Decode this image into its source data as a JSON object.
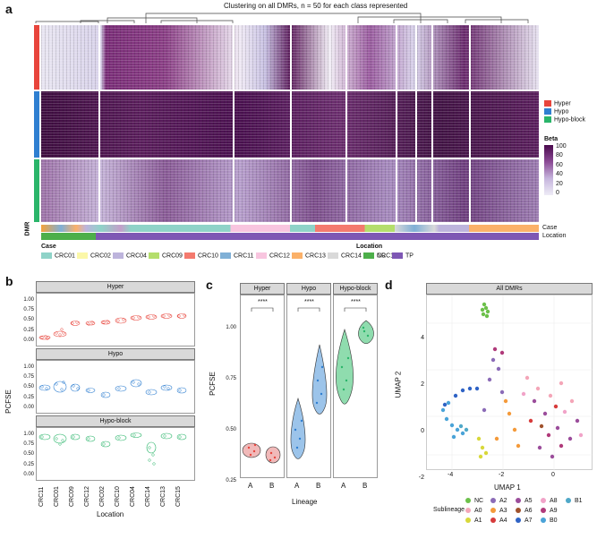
{
  "panel_a": {
    "label": "a",
    "title": "Clustering on all DMRs, n = 50 for each class represented",
    "row_groups": [
      {
        "name": "Hyper",
        "color": "#e8453c"
      },
      {
        "name": "Hypo",
        "color": "#2f7fd1"
      },
      {
        "name": "Hypo-block",
        "color": "#2ab56a"
      }
    ],
    "dmr_axis_label": "DMR",
    "beta_legend": {
      "title": "Beta",
      "ticks": [
        "100",
        "80",
        "60",
        "40",
        "20",
        "0"
      ]
    },
    "annotation_tracks": [
      "Case",
      "Location"
    ],
    "case_legend_title": "Case",
    "cases": [
      {
        "name": "CRC01",
        "color": "#8fd3c8"
      },
      {
        "name": "CRC02",
        "color": "#fbf7a8"
      },
      {
        "name": "CRC04",
        "color": "#bdb4dc"
      },
      {
        "name": "CRC09",
        "color": "#b4de6c"
      },
      {
        "name": "CRC10",
        "color": "#f47a6e"
      },
      {
        "name": "CRC11",
        "color": "#80b0d6"
      },
      {
        "name": "CRC12",
        "color": "#f8c5df"
      },
      {
        "name": "CRC13",
        "color": "#fbb169"
      },
      {
        "name": "CRC14",
        "color": "#d9d9d9"
      },
      {
        "name": "CRC15",
        "color": "#c49fca"
      }
    ],
    "location_legend_title": "Location",
    "locations": [
      {
        "name": "NC",
        "color": "#4daf4a"
      },
      {
        "name": "TP",
        "color": "#7e57b4"
      }
    ]
  },
  "panel_b": {
    "label": "b",
    "facets": [
      "Hyper",
      "Hypo",
      "Hypo-block"
    ],
    "ylabel": "PCFSE",
    "xlabel": "Location",
    "y_ticks": [
      "0.00",
      "0.25",
      "0.50",
      "0.75",
      "1.00"
    ],
    "categories": [
      "CRC11",
      "CRC01",
      "CRC09",
      "CRC12",
      "CRC02",
      "CRC10",
      "CRC04",
      "CRC14",
      "CRC13",
      "CRC15"
    ]
  },
  "panel_c": {
    "label": "c",
    "facets": [
      "Hyper",
      "Hypo",
      "Hypo-block"
    ],
    "ylabel": "PCFSE",
    "xlabel": "Lineage",
    "y_ticks": [
      "0.25",
      "0.50",
      "0.75",
      "1.00"
    ],
    "groups": [
      "A",
      "B"
    ],
    "significance": "****"
  },
  "panel_d": {
    "label": "d",
    "facet": "All DMRs",
    "xlabel": "UMAP 1",
    "ylabel": "UMAP 2",
    "x_ticks": [
      "-4",
      "-2",
      "0",
      "2"
    ],
    "y_ticks": [
      "4",
      "2",
      "0",
      "-2"
    ],
    "legend_title": "Sublineage",
    "sublineages": [
      {
        "name": "NC",
        "color": "#6cc04a"
      },
      {
        "name": "A0",
        "color": "#f4a6b8"
      },
      {
        "name": "A1",
        "color": "#d8d83a"
      },
      {
        "name": "A2",
        "color": "#8b6bb7"
      },
      {
        "name": "A3",
        "color": "#f49a3a"
      },
      {
        "name": "A4",
        "color": "#d73b3b"
      },
      {
        "name": "A5",
        "color": "#9b4d9b"
      },
      {
        "name": "A6",
        "color": "#a0522d"
      },
      {
        "name": "A7",
        "color": "#2f63c5"
      },
      {
        "name": "A8",
        "color": "#f1a3c8"
      },
      {
        "name": "A9",
        "color": "#b03a7a"
      },
      {
        "name": "B0",
        "color": "#4aa3d8"
      },
      {
        "name": "B1",
        "color": "#4fa8c8"
      }
    ]
  }
}
